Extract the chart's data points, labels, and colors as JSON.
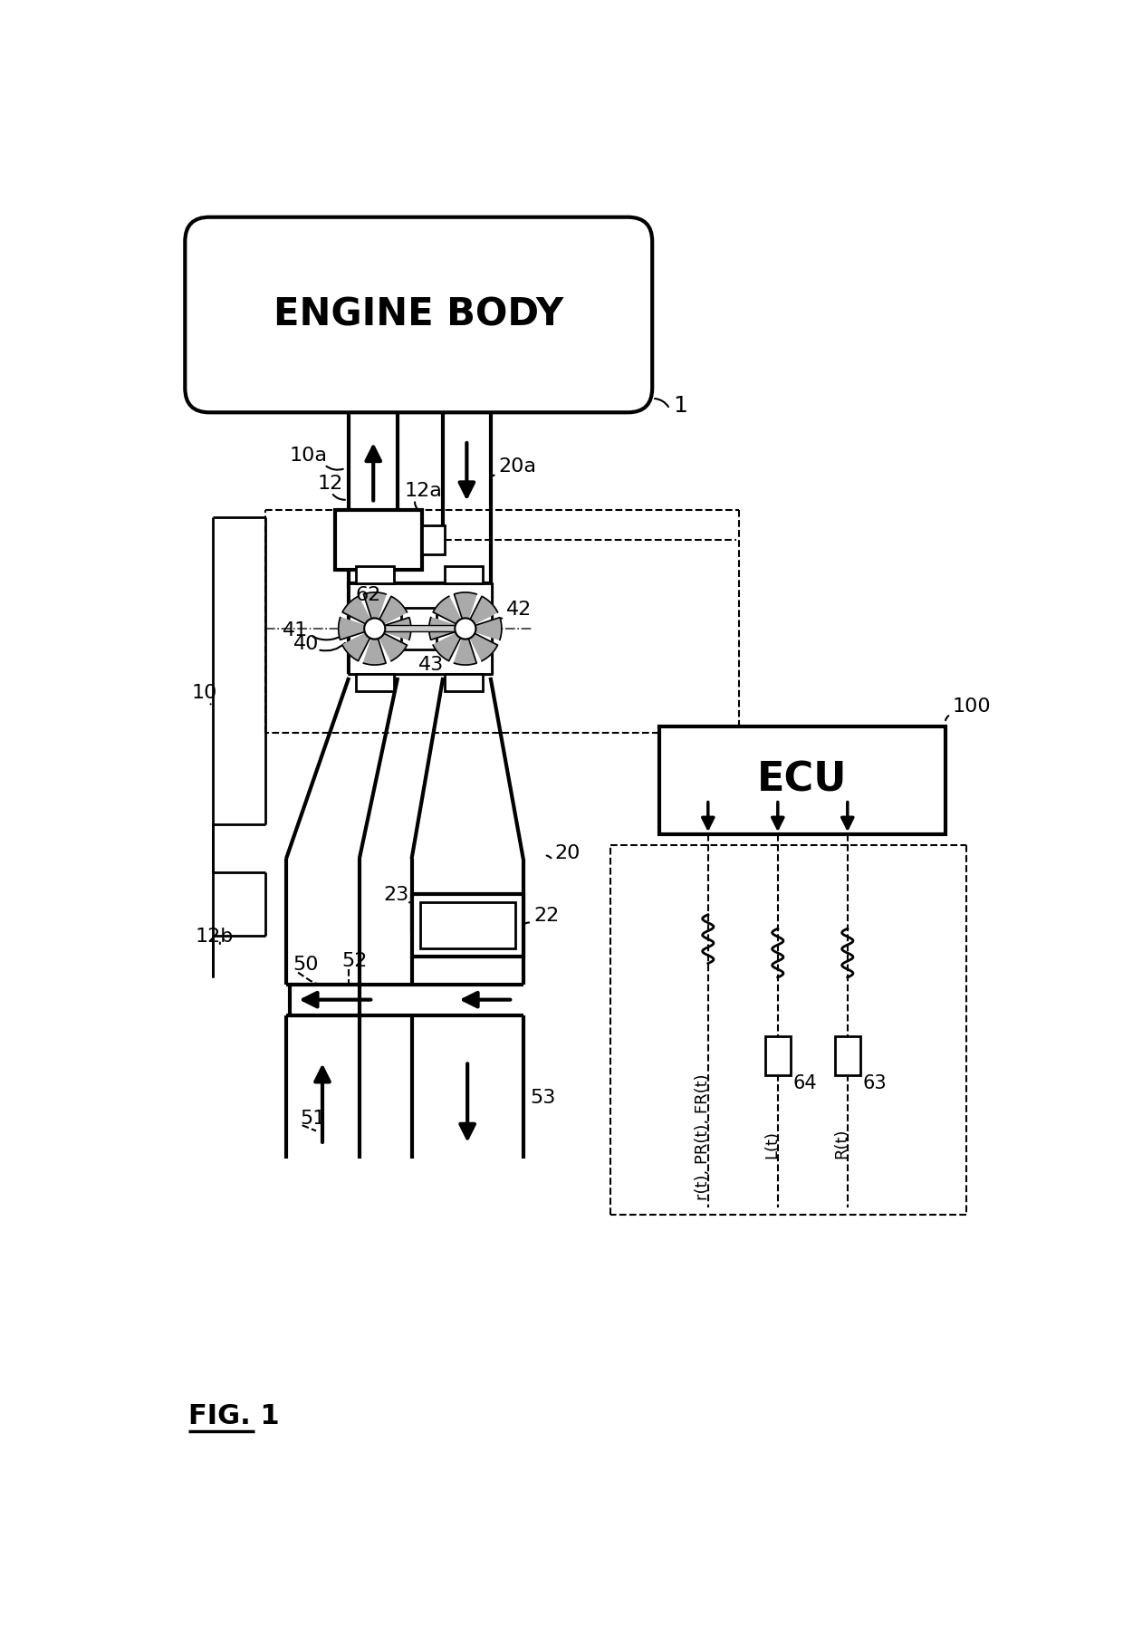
{
  "bg_color": "#ffffff",
  "lc": "#000000",
  "fig_label": "FIG. 1",
  "engine_label": "ENGINE BODY",
  "ecu_label": "ECU"
}
